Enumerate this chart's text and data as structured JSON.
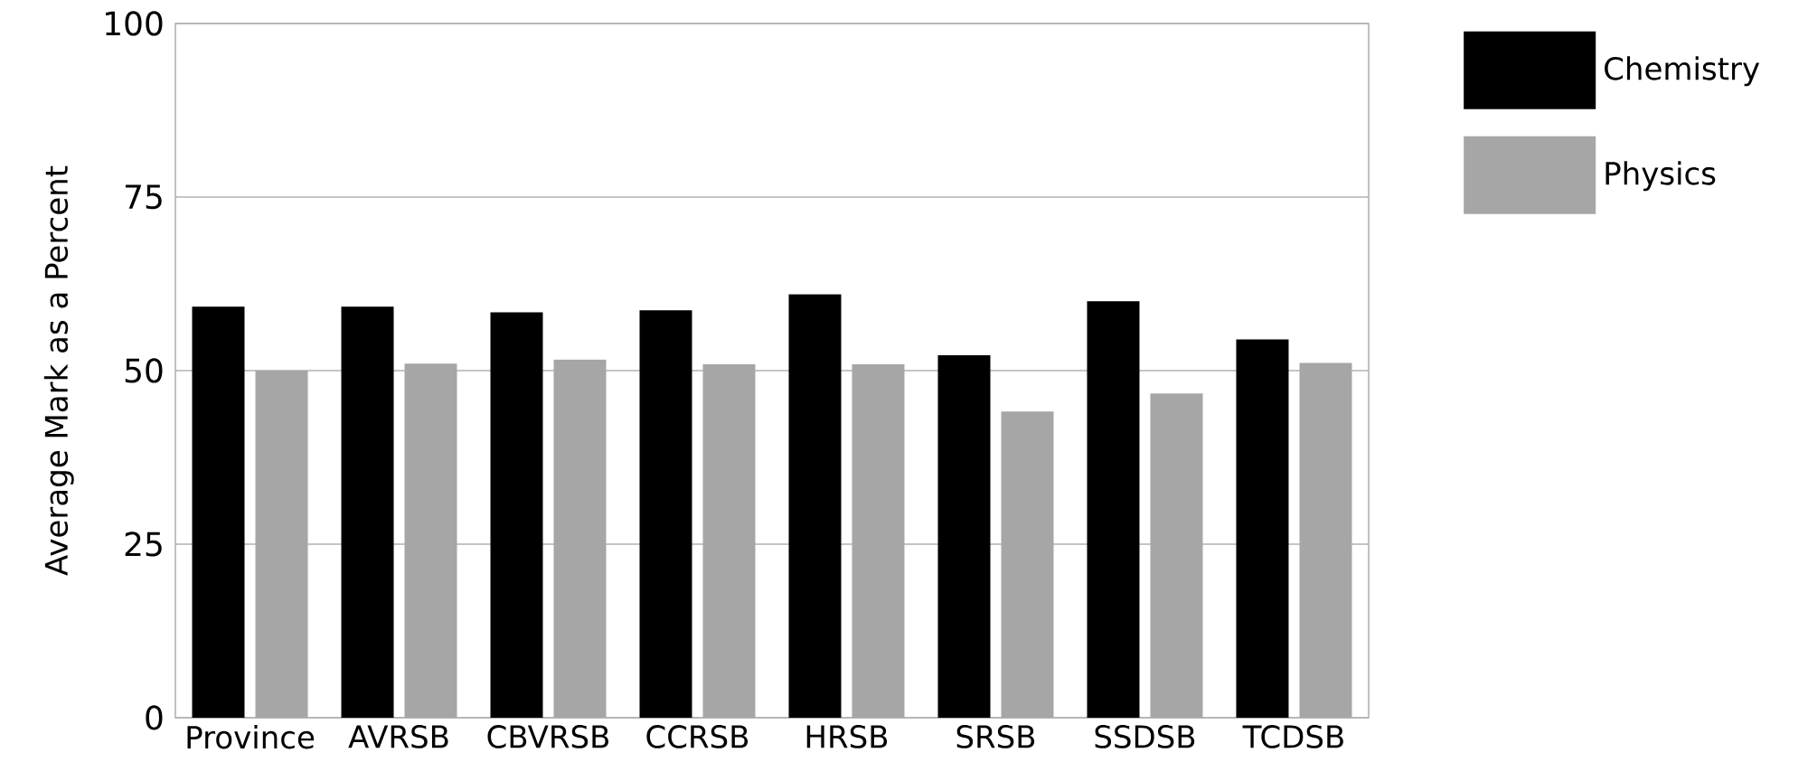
{
  "chart_data": {
    "type": "bar",
    "ylabel": "Average Mark as a Percent",
    "categories": [
      "Province",
      "AVRSB",
      "CBVRSB",
      "CCRSB",
      "HRSB",
      "SRSB",
      "SSDSB",
      "TCDSB"
    ],
    "series": [
      {
        "name": "Chemistry",
        "color": "#000000",
        "values": [
          59.2,
          59.2,
          58.4,
          58.7,
          61.0,
          52.2,
          60.0,
          54.5
        ]
      },
      {
        "name": "Physics",
        "color": "#a6a6a6",
        "values": [
          50.0,
          51.0,
          51.6,
          50.9,
          50.9,
          44.1,
          46.7,
          51.1
        ]
      }
    ],
    "ylim": [
      0,
      100
    ],
    "yticks": [
      0,
      25,
      50,
      75,
      100
    ],
    "grid": "y",
    "legend": "top right"
  }
}
